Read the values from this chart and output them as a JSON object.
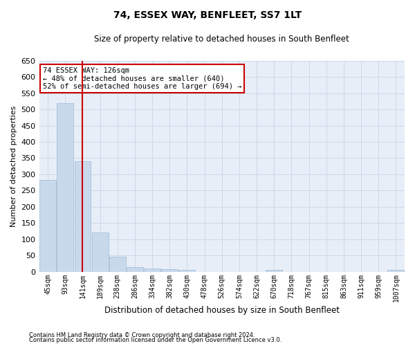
{
  "title": "74, ESSEX WAY, BENFLEET, SS7 1LT",
  "subtitle": "Size of property relative to detached houses in South Benfleet",
  "xlabel": "Distribution of detached houses by size in South Benfleet",
  "ylabel": "Number of detached properties",
  "footer_line1": "Contains HM Land Registry data © Crown copyright and database right 2024.",
  "footer_line2": "Contains public sector information licensed under the Open Government Licence v3.0.",
  "bar_labels": [
    "45sqm",
    "93sqm",
    "141sqm",
    "189sqm",
    "238sqm",
    "286sqm",
    "334sqm",
    "382sqm",
    "430sqm",
    "478sqm",
    "526sqm",
    "574sqm",
    "622sqm",
    "670sqm",
    "718sqm",
    "767sqm",
    "815sqm",
    "863sqm",
    "911sqm",
    "959sqm",
    "1007sqm"
  ],
  "bar_values": [
    283,
    520,
    340,
    120,
    47,
    15,
    10,
    8,
    5,
    0,
    0,
    0,
    0,
    5,
    0,
    0,
    0,
    0,
    0,
    0,
    5
  ],
  "bar_color": "#c8d9ec",
  "bar_edge_color": "#a8c0d8",
  "red_line_index": 2,
  "ylim": [
    0,
    650
  ],
  "yticks": [
    0,
    50,
    100,
    150,
    200,
    250,
    300,
    350,
    400,
    450,
    500,
    550,
    600,
    650
  ],
  "annotation_line1": "74 ESSEX WAY: 126sqm",
  "annotation_line2": "← 48% of detached houses are smaller (640)",
  "annotation_line3": "52% of semi-detached houses are larger (694) →",
  "annotation_box_color": "#ffffff",
  "annotation_box_edge": "#cc0000",
  "grid_color": "#cdd8e8",
  "background_color": "#e8eef8"
}
